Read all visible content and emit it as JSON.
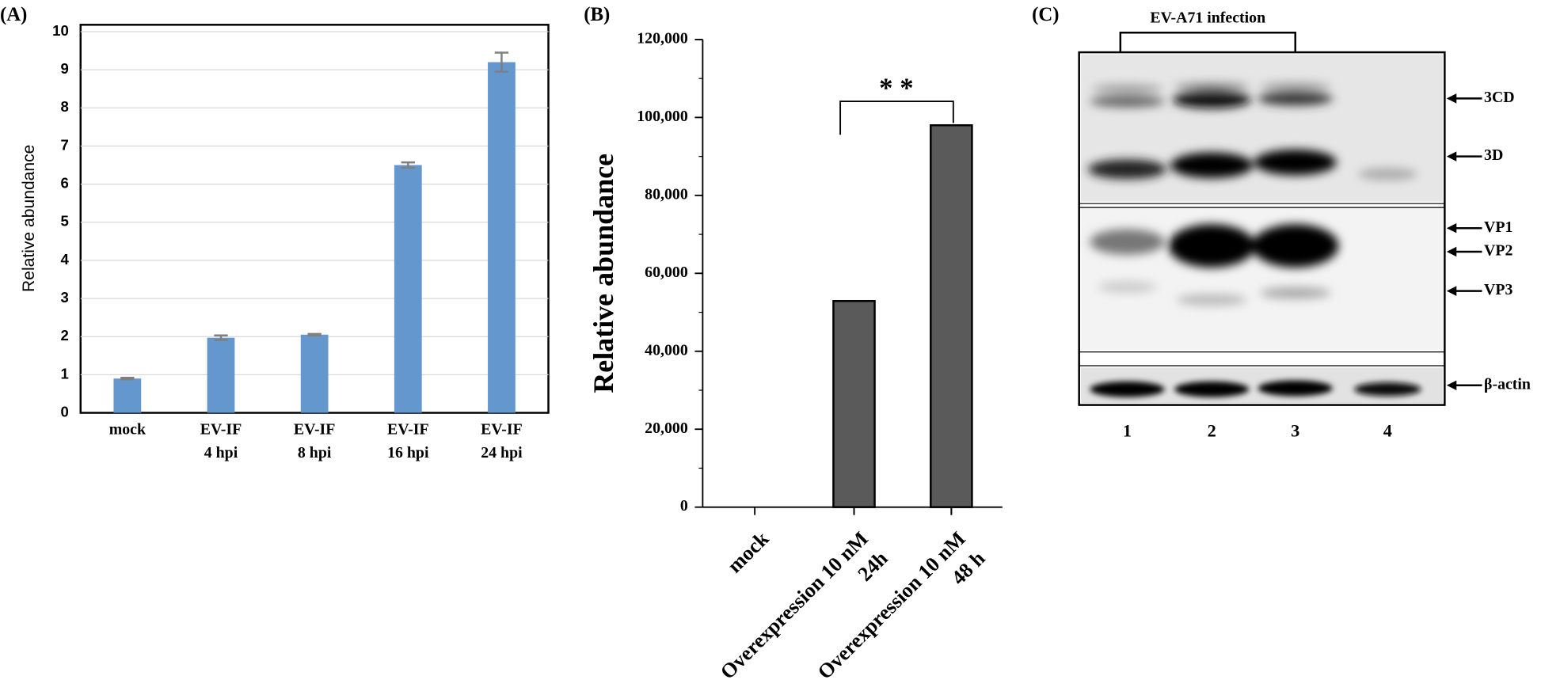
{
  "chart_data": [
    {
      "type": "bar",
      "panel": "(A)",
      "y_label": "Relative abundance",
      "categories": [
        [
          "mock"
        ],
        [
          "EV-IF",
          "4 hpi"
        ],
        [
          "EV-IF",
          "8 hpi"
        ],
        [
          "EV-IF",
          "16 hpi"
        ],
        [
          "EV-IF",
          "24 hpi"
        ]
      ],
      "values": [
        0.9,
        1.97,
        2.05,
        6.5,
        9.2
      ],
      "errors": [
        0.02,
        0.06,
        0.02,
        0.07,
        0.25
      ],
      "color": "#6497cd",
      "ylim": [
        0,
        10
      ],
      "yticks": [
        0,
        1,
        2,
        3,
        4,
        5,
        6,
        7,
        8,
        9,
        10
      ],
      "grid": true
    },
    {
      "type": "bar",
      "panel": "(B)",
      "y_label": "Relative abundance",
      "categories": [
        [
          "mock"
        ],
        [
          "Overexpression 10 nM",
          "24h"
        ],
        [
          "Overexpression 10 nM",
          "48 h"
        ]
      ],
      "values": [
        0,
        52900,
        98000
      ],
      "color": "#5a5a5a",
      "ylim": [
        0,
        120000
      ],
      "yticks": [
        0,
        {
          "value": 20000,
          "label": "20,000"
        },
        {
          "value": 40000,
          "label": "40,000"
        },
        {
          "value": 60000,
          "label": "60,000"
        },
        {
          "value": 80000,
          "label": "80,000"
        },
        {
          "value": 100000,
          "label": "100,000"
        },
        {
          "value": 120000,
          "label": "120,000"
        }
      ],
      "minor_yticks": [
        10000,
        30000,
        50000,
        70000,
        90000,
        110000
      ],
      "annotation": "* *",
      "grid": false
    }
  ],
  "blot": {
    "panel": "(C)",
    "header": "EV-A71 infection",
    "bands": [
      "3CD",
      "3D",
      "VP1",
      "VP2",
      "VP3",
      "β-actin"
    ],
    "lanes": [
      "1",
      "2",
      "3",
      "4"
    ]
  }
}
